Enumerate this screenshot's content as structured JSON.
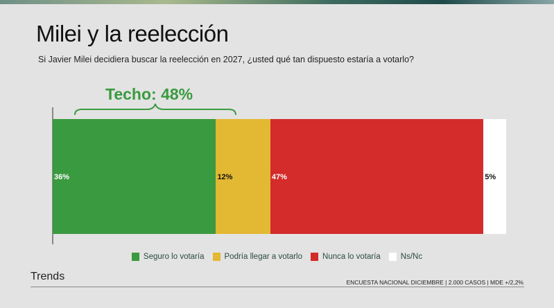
{
  "header": {
    "title": "Milei y la reelección",
    "subtitle": "Si Javier Milei decidiera buscar la reelección en 2027, ¿usted qué tan dispuesto estaría a votarlo?"
  },
  "annotation": {
    "label": "Techo: 48%",
    "color": "#3a9a3f"
  },
  "chart_data": {
    "type": "bar",
    "orientation": "horizontal-stacked",
    "title": "Milei y la reelección",
    "series": [
      {
        "name": "Seguro lo votaría",
        "value": 36,
        "label": "36%",
        "color": "#3a9a3f"
      },
      {
        "name": "Podría llegar a votarlo",
        "value": 12,
        "label": "12%",
        "color": "#e3b832"
      },
      {
        "name": "Nunca lo votaría",
        "value": 47,
        "label": "47%",
        "color": "#d42b2b"
      },
      {
        "name": "Ns/Nc",
        "value": 5,
        "label": "5%",
        "color": "#ffffff"
      }
    ],
    "legend": "bottom",
    "xlim": [
      0,
      100
    ]
  },
  "footer": {
    "brand": "Trends",
    "source": "ENCUESTA NACIONAL DICIEMBRE | 2.000 CASOS | MDE +/2,2%"
  }
}
